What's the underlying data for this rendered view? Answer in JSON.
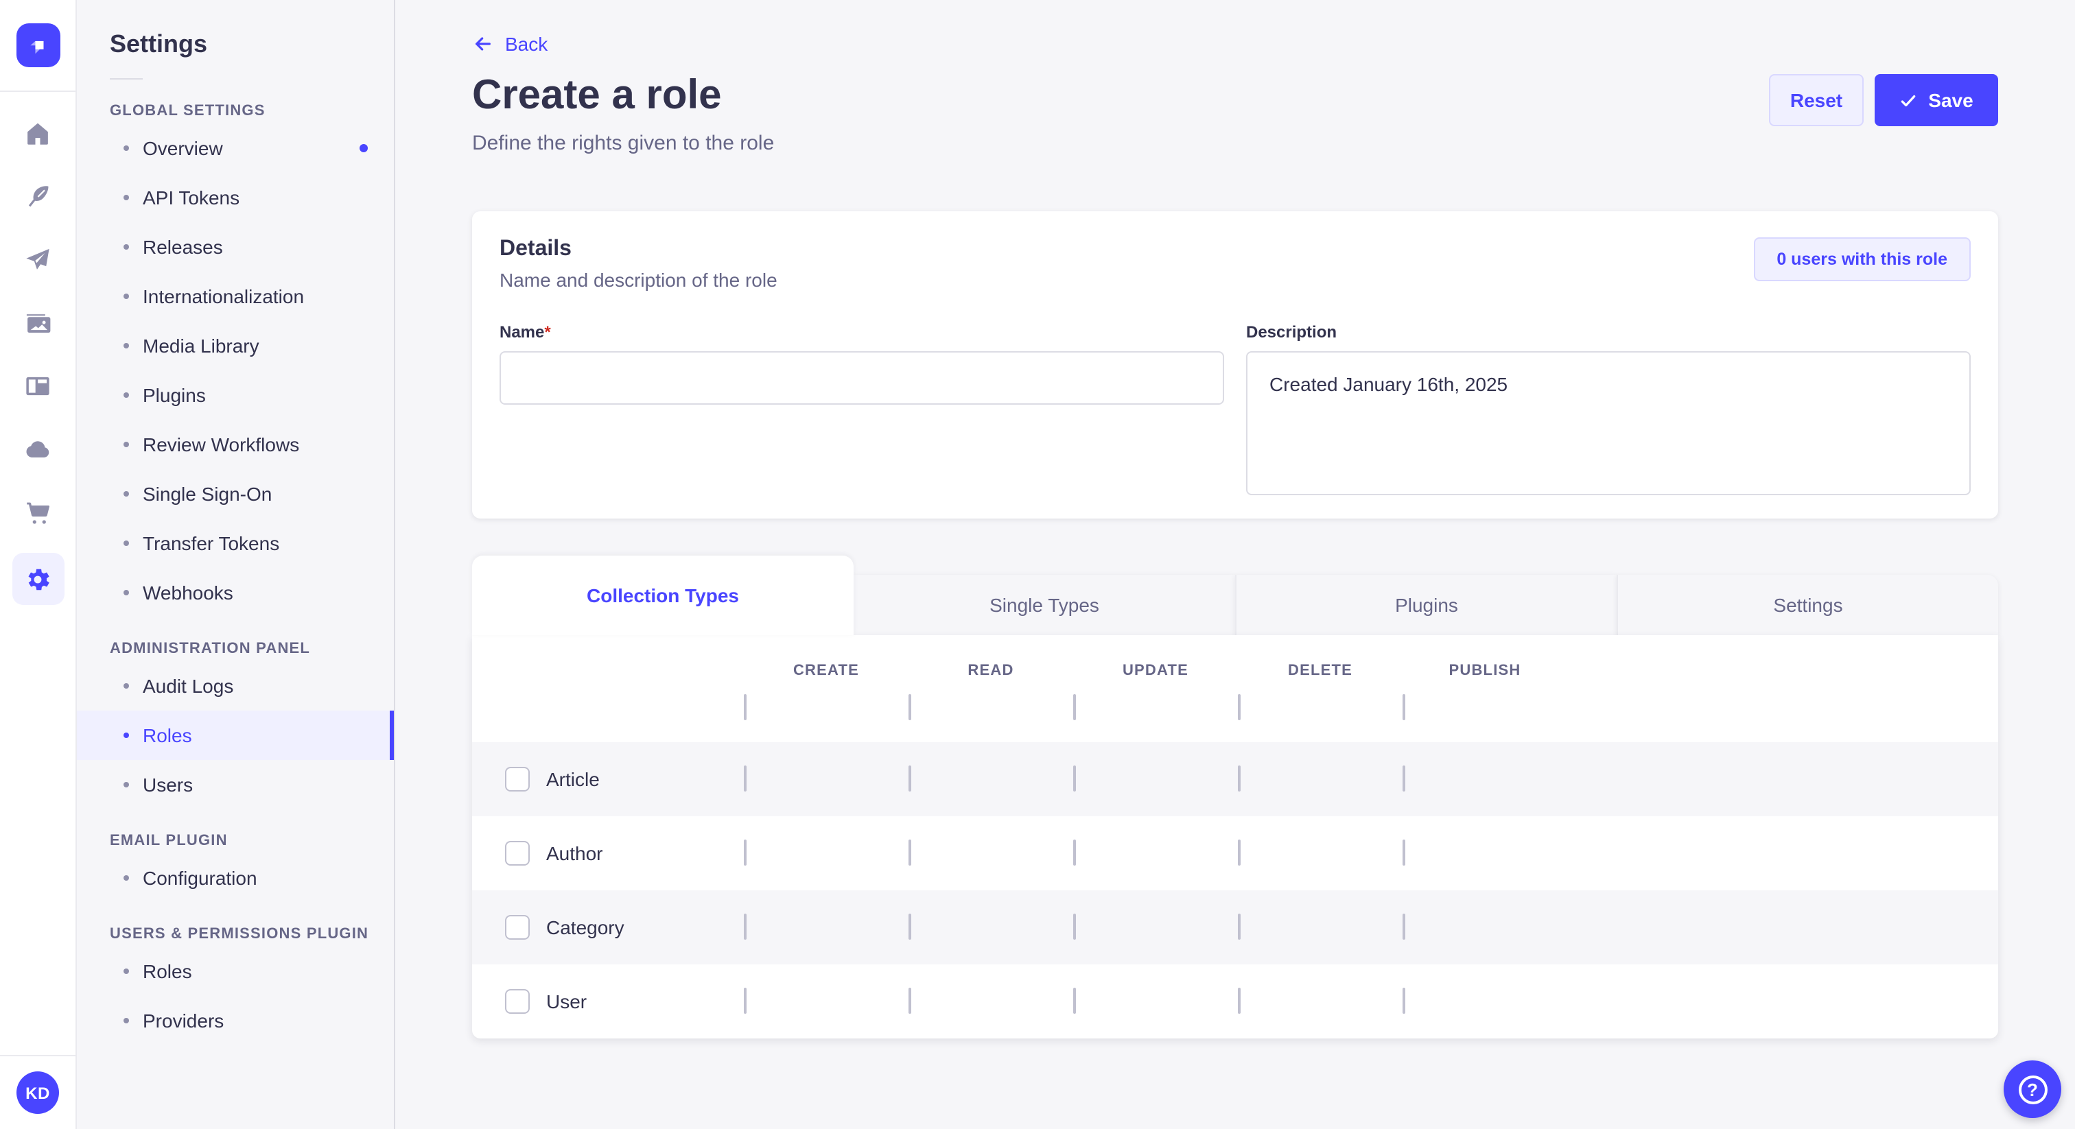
{
  "colors": {
    "primary": "#4945ff",
    "primary_light": "#f0f0ff",
    "primary_border": "#d9d8ff",
    "text_dark": "#32324d",
    "text_muted": "#666687",
    "required_red": "#d02b20",
    "row_alt_bg": "#f6f6f9"
  },
  "nav_rail": {
    "logo_icon": "strapi-logo-icon",
    "icons": [
      {
        "name": "home-icon",
        "active": false
      },
      {
        "name": "feather-icon",
        "active": false
      },
      {
        "name": "paper-plane-icon",
        "active": false
      },
      {
        "name": "media-library-icon",
        "active": false
      },
      {
        "name": "layout-icon",
        "active": false
      },
      {
        "name": "cloud-icon",
        "active": false
      },
      {
        "name": "cart-icon",
        "active": false
      },
      {
        "name": "gear-icon",
        "active": true
      }
    ],
    "avatar_initials": "KD"
  },
  "sidebar": {
    "title": "Settings",
    "sections": [
      {
        "label": "GLOBAL SETTINGS",
        "items": [
          {
            "label": "Overview",
            "active": false,
            "dot": true
          },
          {
            "label": "API Tokens",
            "active": false,
            "dot": false
          },
          {
            "label": "Releases",
            "active": false,
            "dot": false
          },
          {
            "label": "Internationalization",
            "active": false,
            "dot": false
          },
          {
            "label": "Media Library",
            "active": false,
            "dot": false
          },
          {
            "label": "Plugins",
            "active": false,
            "dot": false
          },
          {
            "label": "Review Workflows",
            "active": false,
            "dot": false
          },
          {
            "label": "Single Sign-On",
            "active": false,
            "dot": false
          },
          {
            "label": "Transfer Tokens",
            "active": false,
            "dot": false
          },
          {
            "label": "Webhooks",
            "active": false,
            "dot": false
          }
        ]
      },
      {
        "label": "ADMINISTRATION PANEL",
        "items": [
          {
            "label": "Audit Logs",
            "active": false,
            "dot": false
          },
          {
            "label": "Roles",
            "active": true,
            "dot": false
          },
          {
            "label": "Users",
            "active": false,
            "dot": false
          }
        ]
      },
      {
        "label": "EMAIL PLUGIN",
        "items": [
          {
            "label": "Configuration",
            "active": false,
            "dot": false
          }
        ]
      },
      {
        "label": "USERS & PERMISSIONS PLUGIN",
        "items": [
          {
            "label": "Roles",
            "active": false,
            "dot": false
          },
          {
            "label": "Providers",
            "active": false,
            "dot": false
          }
        ]
      }
    ]
  },
  "header": {
    "back": "Back",
    "title": "Create a role",
    "subtitle": "Define the rights given to the role",
    "reset_label": "Reset",
    "save_label": "Save"
  },
  "details": {
    "title": "Details",
    "subtitle": "Name and description of the role",
    "users_button": "0 users with this role",
    "name_label": "Name",
    "required_mark": "*",
    "name_value": "",
    "description_label": "Description",
    "description_value": "Created January 16th, 2025"
  },
  "tabs": [
    {
      "label": "Collection Types",
      "active": true
    },
    {
      "label": "Single Types",
      "active": false
    },
    {
      "label": "Plugins",
      "active": false
    },
    {
      "label": "Settings",
      "active": false
    }
  ],
  "permissions": {
    "columns": [
      "CREATE",
      "READ",
      "UPDATE",
      "DELETE",
      "PUBLISH"
    ],
    "select_all": [
      false,
      false,
      false,
      false,
      false
    ],
    "rows": [
      {
        "label": "Article",
        "cells": [
          false,
          false,
          false,
          false,
          false
        ]
      },
      {
        "label": "Author",
        "cells": [
          false,
          false,
          false,
          false,
          false
        ]
      },
      {
        "label": "Category",
        "cells": [
          false,
          false,
          false,
          false,
          false
        ]
      },
      {
        "label": "User",
        "cells": [
          false,
          false,
          false,
          false,
          false
        ]
      }
    ]
  },
  "help": {
    "icon": "question-mark-icon"
  }
}
